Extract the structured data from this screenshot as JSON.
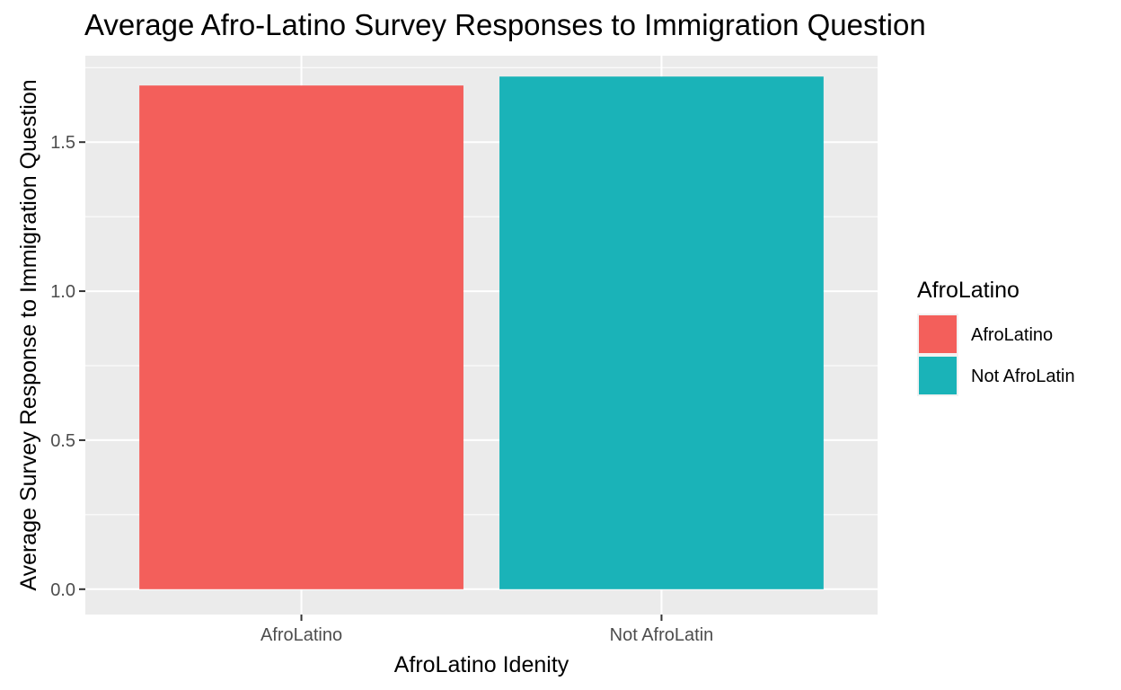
{
  "chart_data": {
    "type": "bar",
    "title": "Average Afro-Latino Survey Responses to Immigration Question",
    "xlabel": "AfroLatino Idenity",
    "ylabel": "Average Survey Response to Immigration Question",
    "categories": [
      "AfroLatino",
      "Not AfroLatin"
    ],
    "values": [
      1.69,
      1.72
    ],
    "colors": [
      "#F35F5B",
      "#1AB3B8"
    ],
    "ylim": [
      -0.085,
      1.79
    ],
    "yticks": [
      0.0,
      0.5,
      1.0,
      1.5
    ],
    "ytick_labels": [
      "0.0",
      "0.5",
      "1.0",
      "1.5"
    ],
    "grid": true,
    "legend": {
      "title": "AfroLatino",
      "position": "right",
      "entries": [
        "AfroLatino",
        "Not AfroLatin"
      ]
    }
  }
}
